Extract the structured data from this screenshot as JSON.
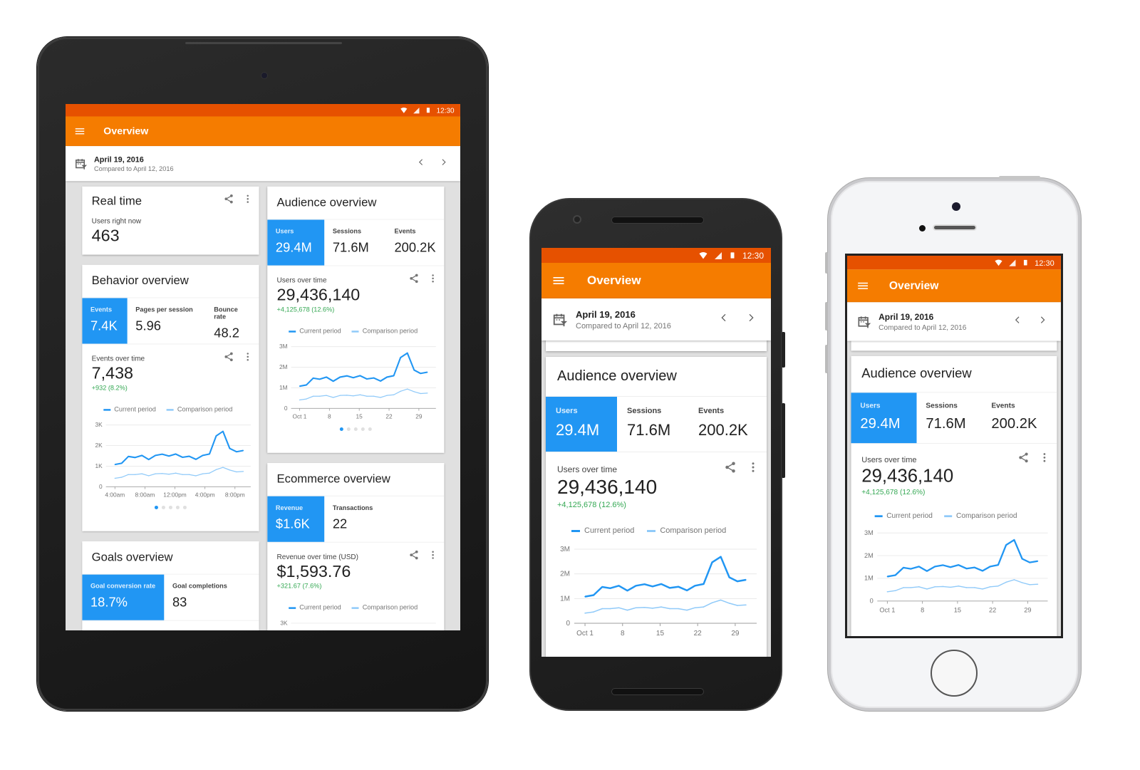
{
  "status": {
    "time": "12:30",
    "icons": [
      "wifi-icon",
      "signal-icon",
      "battery-icon"
    ]
  },
  "app": {
    "title": "Overview",
    "menu_icon": "menu-icon"
  },
  "date": {
    "date": "April 19, 2016",
    "compared": "Compared to April 12, 2016"
  },
  "colors": {
    "status": "#e65100",
    "toolbar": "#f57c00",
    "accent": "#2196f3",
    "comparison": "#90caf9",
    "positive": "#34a853"
  },
  "cards": {
    "realtime": {
      "title": "Real time",
      "label": "Users right now",
      "value": "463"
    },
    "audience": {
      "title": "Audience overview",
      "metrics": [
        {
          "label": "Users",
          "value": "29.4M"
        },
        {
          "label": "Sessions",
          "value": "71.6M"
        },
        {
          "label": "Events",
          "value": "200.2K"
        }
      ],
      "chart": {
        "label": "Users over time",
        "value": "29,436,140",
        "delta": "+4,125,678 (12.6%)"
      },
      "pager": {
        "count": 5,
        "active": 1
      }
    },
    "behavior": {
      "title": "Behavior overview",
      "metrics": [
        {
          "label": "Events",
          "value": "7.4K"
        },
        {
          "label": "Pages per session",
          "value": "5.96"
        },
        {
          "label": "Bounce rate",
          "value": "48.2"
        }
      ],
      "chart": {
        "label": "Events over time",
        "value": "7,438",
        "delta": "+932 (8.2%)"
      },
      "pager": {
        "count": 5,
        "active": 1
      }
    },
    "ecommerce": {
      "title": "Ecommerce overview",
      "metrics": [
        {
          "label": "Revenue",
          "value": "$1.6K"
        },
        {
          "label": "Transactions",
          "value": "22"
        }
      ],
      "chart": {
        "label": "Revenue over time (USD)",
        "value": "$1,593.76",
        "delta": "+321.67 (7.6%)"
      }
    },
    "goals": {
      "title": "Goals overview",
      "metrics": [
        {
          "label": "Goal conversion rate",
          "value": "18.7%"
        },
        {
          "label": "Goal completions",
          "value": "83"
        }
      ]
    }
  },
  "chart_data": [
    {
      "type": "line",
      "title": "Users over time",
      "xlim": [
        -1,
        33
      ],
      "ylim": [
        0,
        3
      ],
      "xticks": [
        1,
        8,
        15,
        22,
        29
      ],
      "xtick_labels": [
        "Oct 1",
        "8",
        "15",
        "22",
        "29"
      ],
      "yticks": [
        0,
        1,
        2,
        3
      ],
      "ytick_labels": [
        "0",
        "1M",
        "2M",
        "3M"
      ],
      "legend": "top-left",
      "grid": true,
      "x": [
        1,
        2.6,
        4.2,
        5.7,
        7.3,
        8.9,
        10.5,
        12.1,
        13.6,
        15.2,
        16.8,
        18.4,
        20,
        21.5,
        23.1,
        24.7,
        26.3,
        27.9,
        29.4,
        31
      ],
      "series": [
        {
          "name": "Current period",
          "color": "#2196f3",
          "values": [
            1.08,
            1.14,
            1.47,
            1.42,
            1.52,
            1.32,
            1.52,
            1.58,
            1.49,
            1.59,
            1.43,
            1.48,
            1.33,
            1.52,
            1.59,
            2.47,
            2.69,
            1.86,
            1.7,
            1.76
          ]
        },
        {
          "name": "Comparison period",
          "color": "#90caf9",
          "values": [
            0.41,
            0.46,
            0.59,
            0.59,
            0.63,
            0.53,
            0.63,
            0.64,
            0.61,
            0.66,
            0.59,
            0.59,
            0.53,
            0.63,
            0.66,
            0.83,
            0.94,
            0.81,
            0.72,
            0.74
          ]
        }
      ]
    },
    {
      "type": "line",
      "title": "Events over time",
      "xlim": [
        2.8,
        22.1
      ],
      "ylim": [
        0,
        3
      ],
      "xticks": [
        4,
        8,
        12,
        16,
        20
      ],
      "xtick_labels": [
        "4:00am",
        "8:00am",
        "12:00pm",
        "4:00pm",
        "8:00pm"
      ],
      "yticks": [
        0,
        1,
        2,
        3
      ],
      "ytick_labels": [
        "0",
        "1K",
        "2K",
        "3K"
      ],
      "legend": "top-left",
      "grid": true,
      "x": [
        4,
        4.9,
        5.8,
        6.7,
        7.6,
        8.5,
        9.4,
        10.3,
        11.2,
        12.1,
        13,
        13.9,
        14.8,
        15.7,
        16.6,
        17.5,
        18.4,
        19.3,
        20.2,
        21.1
      ],
      "series": [
        {
          "name": "Current period",
          "color": "#2196f3",
          "values": [
            1.08,
            1.14,
            1.47,
            1.42,
            1.52,
            1.32,
            1.52,
            1.58,
            1.49,
            1.59,
            1.43,
            1.48,
            1.33,
            1.52,
            1.59,
            2.47,
            2.69,
            1.86,
            1.7,
            1.76
          ]
        },
        {
          "name": "Comparison period",
          "color": "#90caf9",
          "values": [
            0.41,
            0.46,
            0.59,
            0.59,
            0.63,
            0.53,
            0.63,
            0.64,
            0.61,
            0.66,
            0.59,
            0.59,
            0.53,
            0.63,
            0.66,
            0.83,
            0.94,
            0.81,
            0.72,
            0.74
          ]
        }
      ]
    },
    {
      "type": "line",
      "title": "Revenue over time (USD)",
      "ylim": [
        0,
        3
      ],
      "yticks": [
        3
      ],
      "ytick_labels": [
        "3K"
      ],
      "legend": "top-left",
      "series": [
        {
          "name": "Current period",
          "color": "#2196f3",
          "values": []
        },
        {
          "name": "Comparison period",
          "color": "#90caf9",
          "values": []
        }
      ]
    }
  ]
}
